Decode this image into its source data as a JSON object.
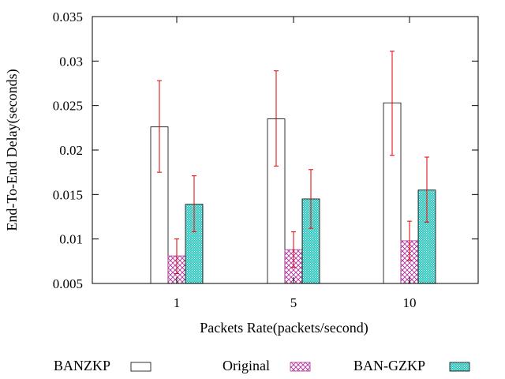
{
  "chart_data": {
    "type": "bar",
    "title": "",
    "xlabel": "Packets Rate(packets/second)",
    "ylabel": "End-To-End Delay(seconds)",
    "categories": [
      "1",
      "5",
      "10"
    ],
    "ylim": [
      0.005,
      0.035
    ],
    "yticks": [
      0.005,
      0.01,
      0.015,
      0.02,
      0.025,
      0.03,
      0.035
    ],
    "ytick_labels": [
      "0.005",
      "0.01",
      "0.015",
      "0.02",
      "0.025",
      "0.03",
      "0.035"
    ],
    "grid": false,
    "legend_position": "bottom",
    "series": [
      {
        "name": "BANZKP",
        "pattern": "empty",
        "color": "#000000",
        "values": [
          0.0226,
          0.0235,
          0.0253
        ],
        "err_low": [
          0.0175,
          0.0182,
          0.0194
        ],
        "err_high": [
          0.0278,
          0.0289,
          0.0311
        ]
      },
      {
        "name": "Original",
        "pattern": "crosshatch",
        "color": "#b0309a",
        "values": [
          0.0081,
          0.0088,
          0.0098
        ],
        "err_low": [
          0.0061,
          0.0068,
          0.0076
        ],
        "err_high": [
          0.01,
          0.0108,
          0.012
        ]
      },
      {
        "name": "BAN-GZKP",
        "pattern": "dots",
        "color": "#2ec8c0",
        "values": [
          0.0139,
          0.0145,
          0.0155
        ],
        "err_low": [
          0.0108,
          0.0112,
          0.0119
        ],
        "err_high": [
          0.0171,
          0.0178,
          0.0192
        ]
      }
    ],
    "error_bar_color": "#e00000"
  }
}
